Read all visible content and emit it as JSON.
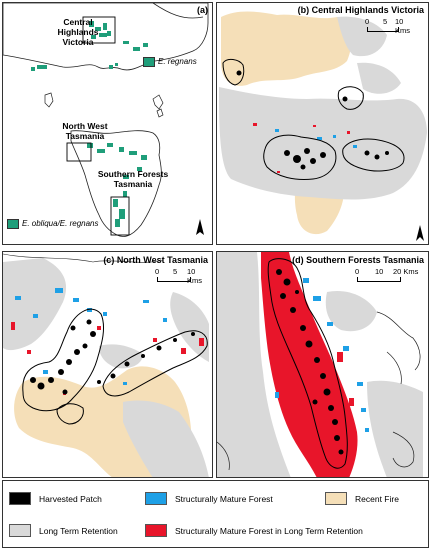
{
  "panels": {
    "a": {
      "label": "(a)",
      "places": {
        "victoria": "Central Highlands\nVictoria",
        "northwest": "North West\nTasmania",
        "southern": "Southern Forests\nTasmania"
      },
      "legend_regnans": "E. regnans",
      "legend_obliqua": "E. obliqua/E. regnans"
    },
    "b": {
      "title": "(b) Central Highlands Victoria",
      "scale": [
        "0",
        "5",
        "10 Kms"
      ]
    },
    "c": {
      "title": "(c) North West Tasmania",
      "scale": [
        "0",
        "5",
        "10 Kms"
      ]
    },
    "d": {
      "title": "(d) Southern Forests Tasmania",
      "scale": [
        "0",
        "10",
        "20 Kms"
      ]
    }
  },
  "north_label": "N",
  "legend": {
    "harvested": "Harvested Patch",
    "mature": "Structurally Mature Forest",
    "fire": "Recent Fire",
    "retention": "Long Term Retention",
    "mature_retention": "Structurally Mature Forest in Long Term Retention"
  },
  "colors": {
    "harvested": "#000000",
    "mature": "#1ea0e6",
    "fire": "#f5dfb8",
    "retention": "#d9d9d9",
    "mature_retention": "#e8152a",
    "species": "#1f9e7a"
  }
}
